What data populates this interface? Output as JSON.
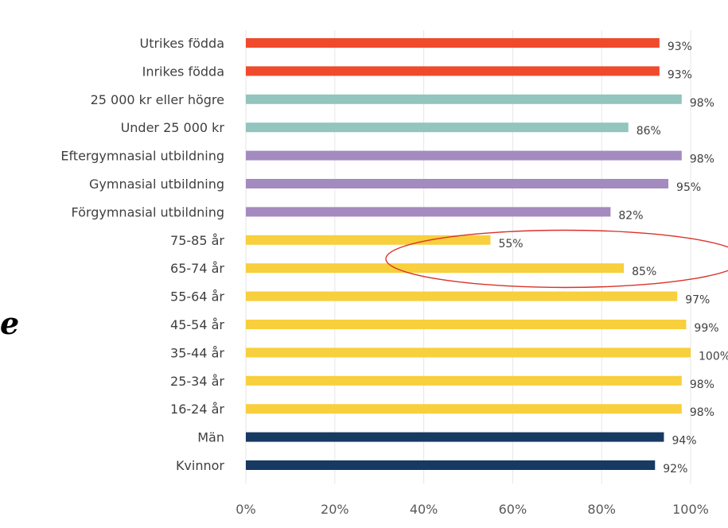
{
  "chart_data": {
    "type": "bar",
    "orientation": "horizontal",
    "categories": [
      "Utrikes födda",
      "Inrikes födda",
      "25 000 kr eller högre",
      "Under 25 000 kr",
      "Eftergymnasial utbildning",
      "Gymnasial utbildning",
      "Förgymnasial utbildning",
      "75-85 år",
      "65-74 år",
      "55-64 år",
      "45-54 år",
      "35-44 år",
      "25-34 år",
      "16-24 år",
      "Män",
      "Kvinnor"
    ],
    "values": [
      93,
      93,
      98,
      86,
      98,
      95,
      82,
      55,
      85,
      97,
      99,
      100,
      98,
      98,
      94,
      92
    ],
    "value_labels": [
      "93%",
      "93%",
      "98%",
      "86%",
      "98%",
      "95%",
      "82%",
      "55%",
      "85%",
      "97%",
      "99%",
      "100%",
      "98%",
      "98%",
      "94%",
      "92%"
    ],
    "bar_colors": [
      "#f04a2c",
      "#f04a2c",
      "#92c5bd",
      "#92c5bd",
      "#a48bbf",
      "#a48bbf",
      "#a48bbf",
      "#f8cf3c",
      "#f8cf3c",
      "#f8cf3c",
      "#f8cf3c",
      "#f8cf3c",
      "#f8cf3c",
      "#f8cf3c",
      "#173a63",
      "#173a63"
    ],
    "x_ticks": [
      "0%",
      "20%",
      "40%",
      "60%",
      "80%",
      "100%"
    ],
    "xlim": [
      0,
      100
    ],
    "grid": true,
    "highlight": {
      "shape": "ellipse",
      "color": "#d9332b",
      "categories": [
        "75-85 år",
        "65-74 år"
      ]
    }
  },
  "annotation_text": "e"
}
